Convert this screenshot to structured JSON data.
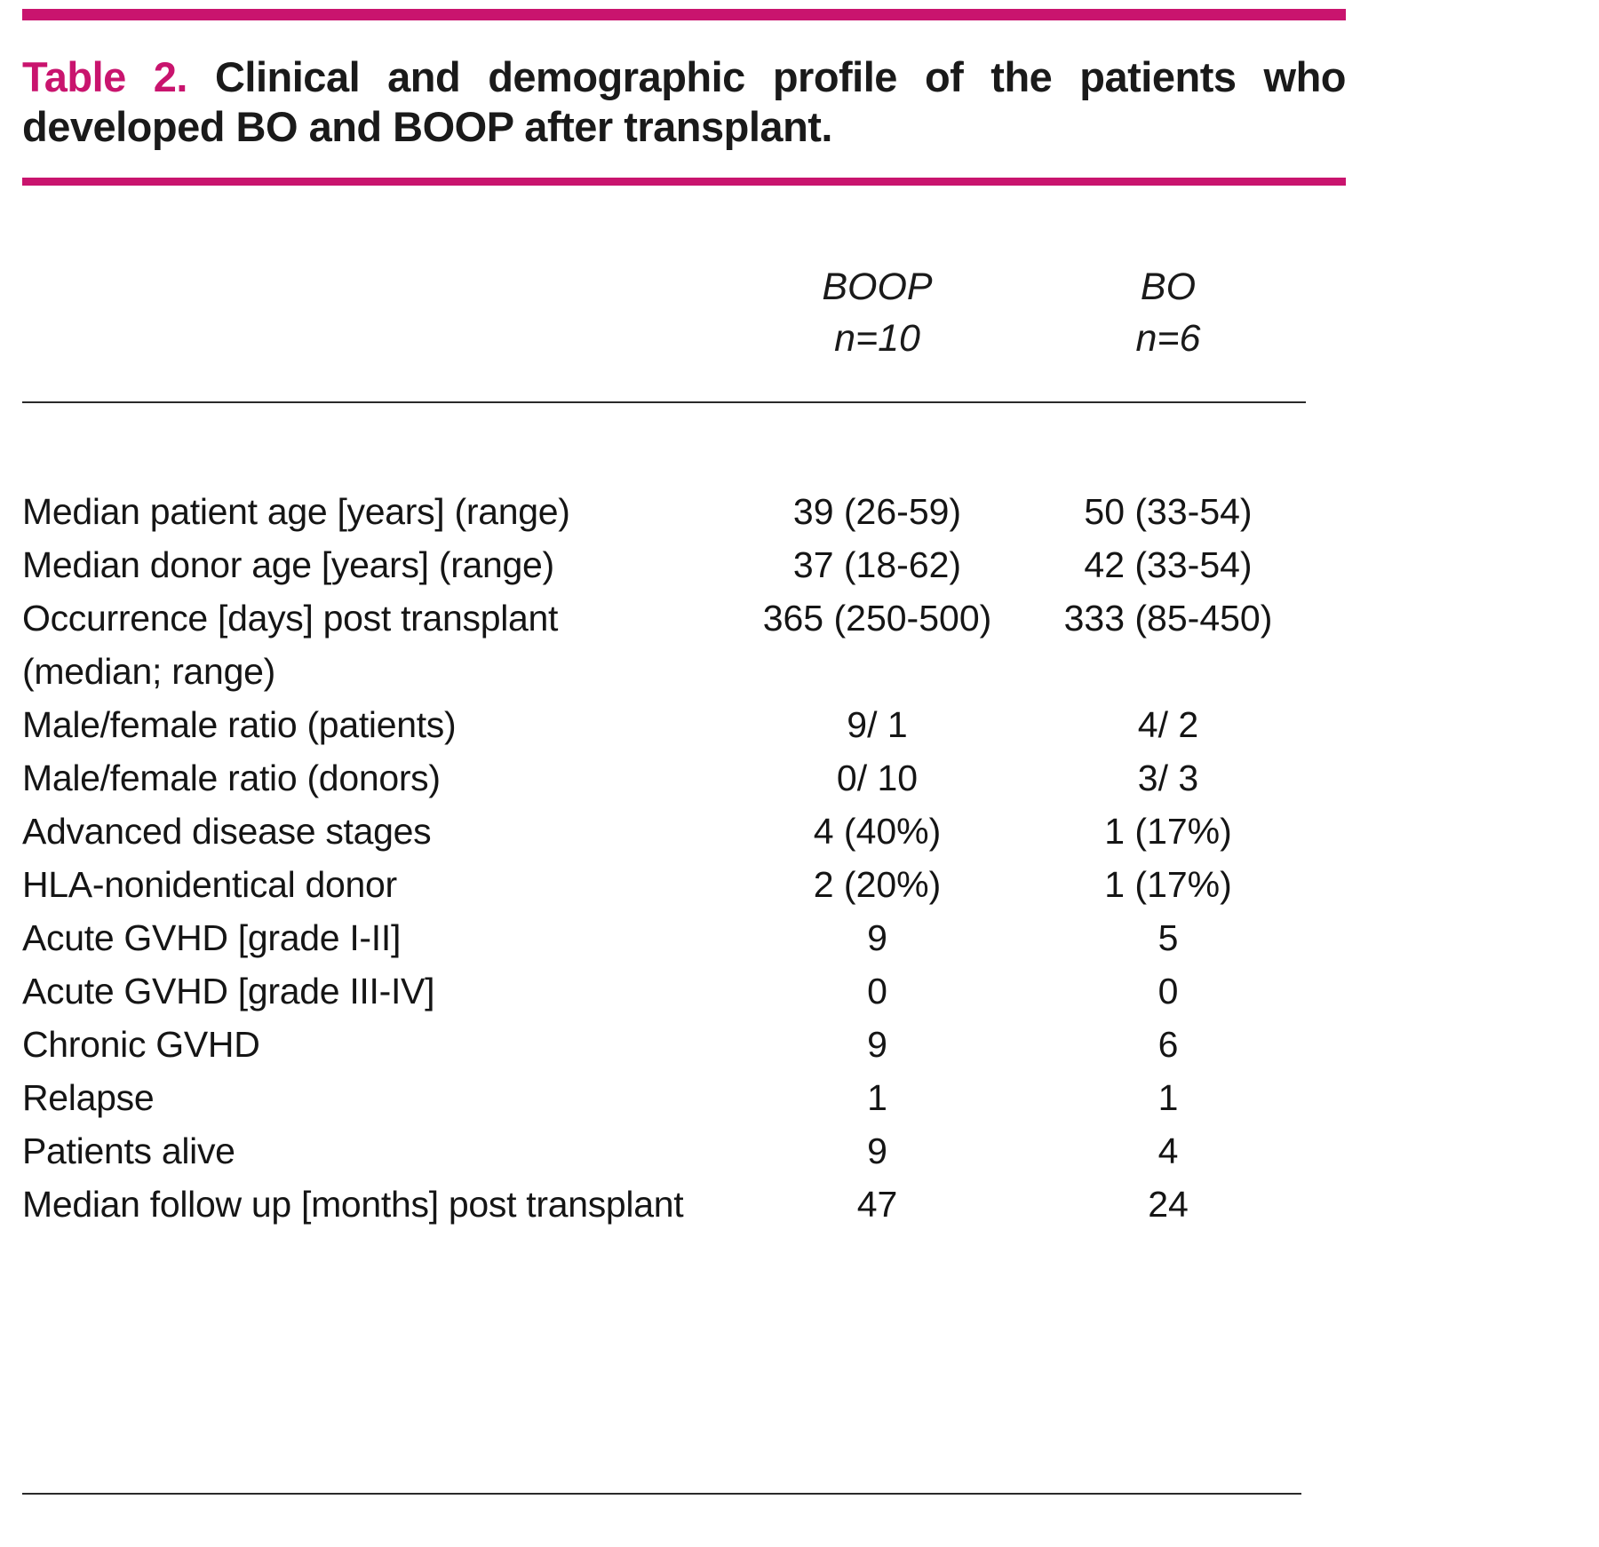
{
  "colors": {
    "accent": "#c9146e",
    "text": "#1a1a1a"
  },
  "table": {
    "label": "Table 2.",
    "title_line1": "Clinical and demographic profile of the patients who",
    "title_line2": "developed BO and BOOP after transplant.",
    "columns": {
      "boop": {
        "name": "BOOP",
        "n": "n=10"
      },
      "bo": {
        "name": "BO",
        "n": "n=6"
      }
    },
    "rows": [
      {
        "label": "Median patient age [years] (range)",
        "boop": "39 (26-59)",
        "bo": "50 (33-54)"
      },
      {
        "label": "Median donor age [years] (range)",
        "boop": "37 (18-62)",
        "bo": "42 (33-54)"
      },
      {
        "label": "Occurrence [days] post transplant\n(median; range)",
        "boop": "365 (250-500)",
        "bo": "333 (85-450)"
      },
      {
        "label": "Male/female ratio (patients)",
        "boop": "9/ 1",
        "bo": "4/ 2"
      },
      {
        "label": "Male/female ratio (donors)",
        "boop": "0/ 10",
        "bo": "3/ 3"
      },
      {
        "label": "Advanced disease stages",
        "boop": "4 (40%)",
        "bo": "1 (17%)"
      },
      {
        "label": "HLA-nonidentical donor",
        "boop": "2 (20%)",
        "bo": "1 (17%)"
      },
      {
        "label": "Acute GVHD [grade I-II]",
        "boop": "9",
        "bo": "5"
      },
      {
        "label": "Acute GVHD [grade III-IV]",
        "boop": "0",
        "bo": "0"
      },
      {
        "label": "Chronic GVHD",
        "boop": "9",
        "bo": "6"
      },
      {
        "label": "Relapse",
        "boop": "1",
        "bo": "1"
      },
      {
        "label": "Patients alive",
        "boop": "9",
        "bo": "4"
      },
      {
        "label": "Median follow up [months] post transplant",
        "boop": "47",
        "bo": "24"
      }
    ]
  }
}
